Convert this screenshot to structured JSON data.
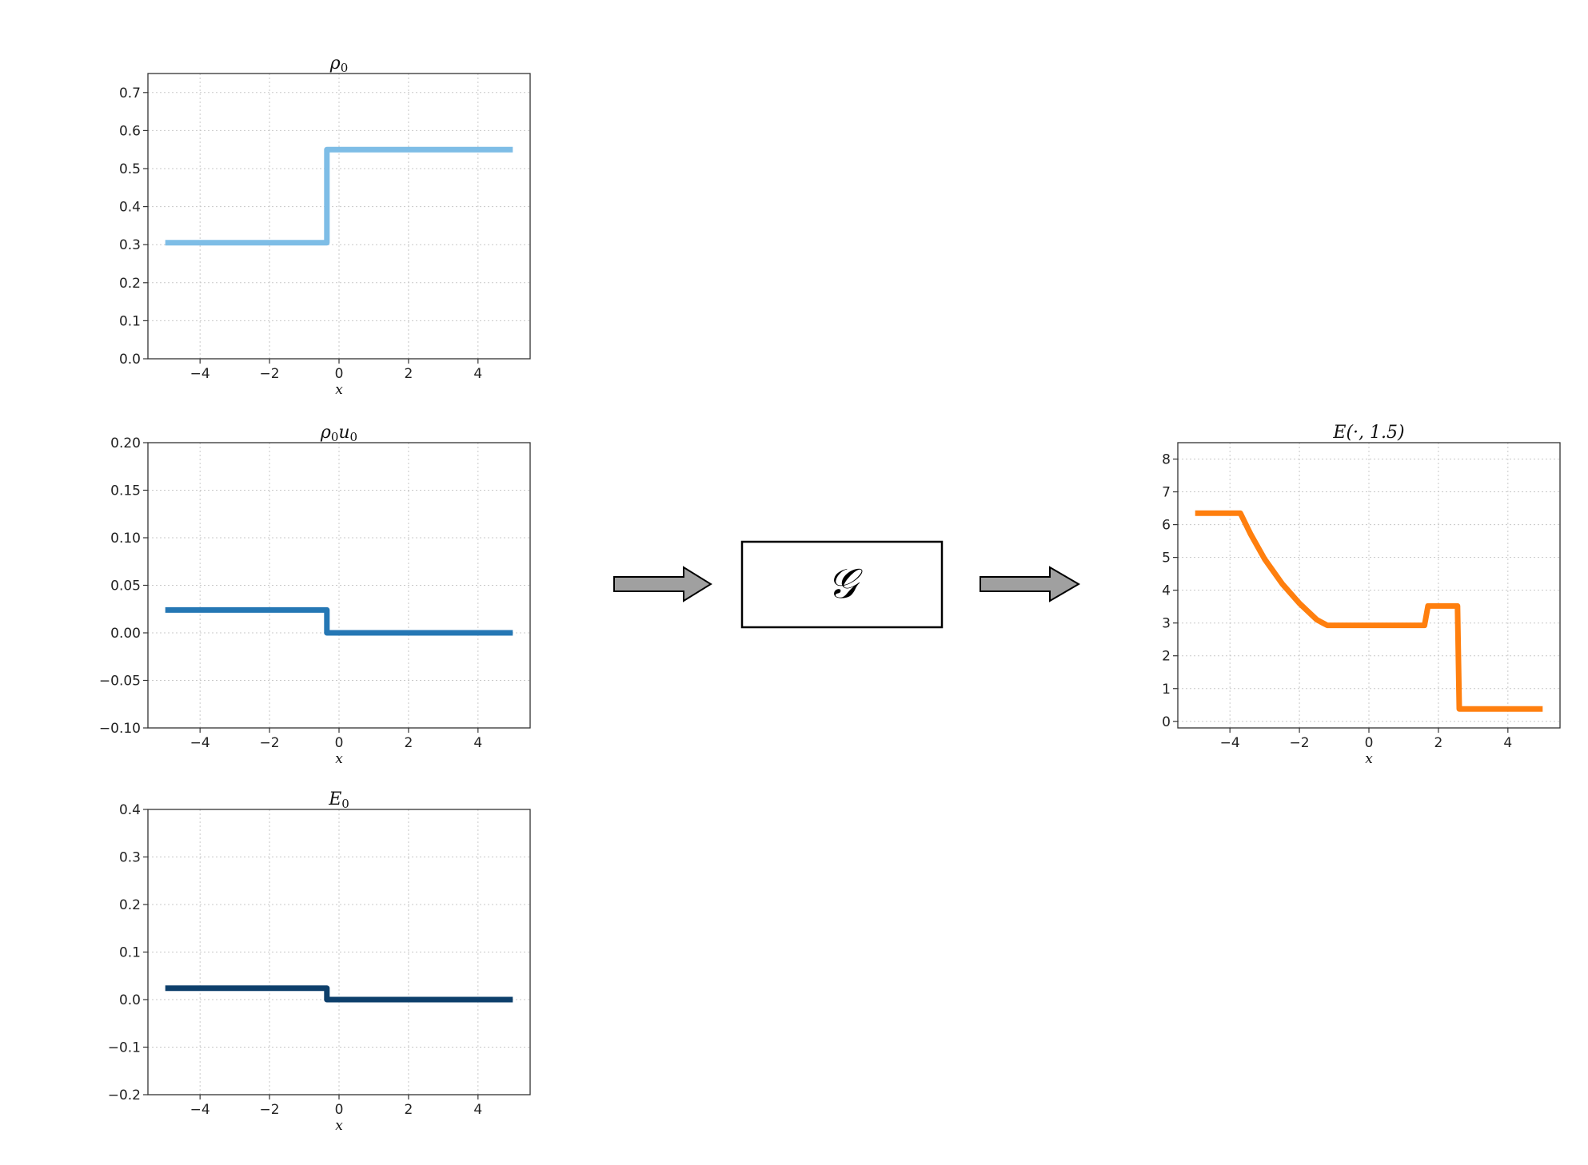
{
  "operator": {
    "symbol": "𝒢"
  },
  "chart_data": [
    {
      "id": "rho0",
      "type": "line",
      "title": "ρ0",
      "xlabel": "x",
      "ylabel": "",
      "xlim": [
        -5.5,
        5.5
      ],
      "ylim": [
        0.0,
        0.75
      ],
      "xticks": [
        -4,
        -2,
        0,
        2,
        4
      ],
      "xtick_labels": [
        "−4",
        "−2",
        "0",
        "2",
        "4"
      ],
      "yticks": [
        0.0,
        0.1,
        0.2,
        0.3,
        0.4,
        0.5,
        0.6,
        0.7
      ],
      "ytick_labels": [
        "0.0",
        "0.1",
        "0.2",
        "0.3",
        "0.4",
        "0.5",
        "0.6",
        "0.7"
      ],
      "grid": true,
      "color": "#7ebde6",
      "series": [
        {
          "x": [
            -5.0,
            -0.35,
            -0.35,
            5.0
          ],
          "y": [
            0.305,
            0.305,
            0.55,
            0.55
          ]
        }
      ]
    },
    {
      "id": "rho0u0",
      "type": "line",
      "title": "ρ0u0",
      "xlabel": "x",
      "ylabel": "",
      "xlim": [
        -5.5,
        5.5
      ],
      "ylim": [
        -0.1,
        0.2
      ],
      "xticks": [
        -4,
        -2,
        0,
        2,
        4
      ],
      "xtick_labels": [
        "−4",
        "−2",
        "0",
        "2",
        "4"
      ],
      "yticks": [
        -0.1,
        -0.05,
        0.0,
        0.05,
        0.1,
        0.15,
        0.2
      ],
      "ytick_labels": [
        "−0.10",
        "−0.05",
        "0.00",
        "0.05",
        "0.10",
        "0.15",
        "0.20"
      ],
      "grid": true,
      "color": "#2577b4",
      "series": [
        {
          "x": [
            -5.0,
            -0.35,
            -0.35,
            5.0
          ],
          "y": [
            0.024,
            0.024,
            0.0,
            0.0
          ]
        }
      ]
    },
    {
      "id": "E0",
      "type": "line",
      "title": "E0",
      "xlabel": "x",
      "ylabel": "",
      "xlim": [
        -5.5,
        5.5
      ],
      "ylim": [
        -0.2,
        0.4
      ],
      "xticks": [
        -4,
        -2,
        0,
        2,
        4
      ],
      "xtick_labels": [
        "−4",
        "−2",
        "0",
        "2",
        "4"
      ],
      "yticks": [
        -0.2,
        -0.1,
        0.0,
        0.1,
        0.2,
        0.3,
        0.4
      ],
      "ytick_labels": [
        "−0.2",
        "−0.1",
        "0.0",
        "0.1",
        "0.2",
        "0.3",
        "0.4"
      ],
      "grid": true,
      "color": "#0d3f6b",
      "series": [
        {
          "x": [
            -5.0,
            -0.35,
            -0.35,
            5.0
          ],
          "y": [
            0.024,
            0.024,
            0.0,
            0.0
          ]
        }
      ]
    },
    {
      "id": "E15",
      "type": "line",
      "title": "E(·, 1.5)",
      "xlabel": "x",
      "ylabel": "",
      "xlim": [
        -5.5,
        5.5
      ],
      "ylim": [
        -0.2,
        8.5
      ],
      "xticks": [
        -4,
        -2,
        0,
        2,
        4
      ],
      "xtick_labels": [
        "−4",
        "−2",
        "0",
        "2",
        "4"
      ],
      "yticks": [
        0,
        1,
        2,
        3,
        4,
        5,
        6,
        7,
        8
      ],
      "ytick_labels": [
        "0",
        "1",
        "2",
        "3",
        "4",
        "5",
        "6",
        "7",
        "8"
      ],
      "grid": true,
      "color": "#ff7f0e",
      "series": [
        {
          "x": [
            -5.0,
            -3.7,
            -3.4,
            -3.0,
            -2.5,
            -2.0,
            -1.5,
            -1.2,
            1.6,
            1.7,
            2.55,
            2.6,
            5.0
          ],
          "y": [
            6.35,
            6.35,
            5.7,
            4.95,
            4.2,
            3.6,
            3.1,
            2.93,
            2.93,
            3.52,
            3.52,
            0.38,
            0.38
          ]
        }
      ]
    }
  ]
}
